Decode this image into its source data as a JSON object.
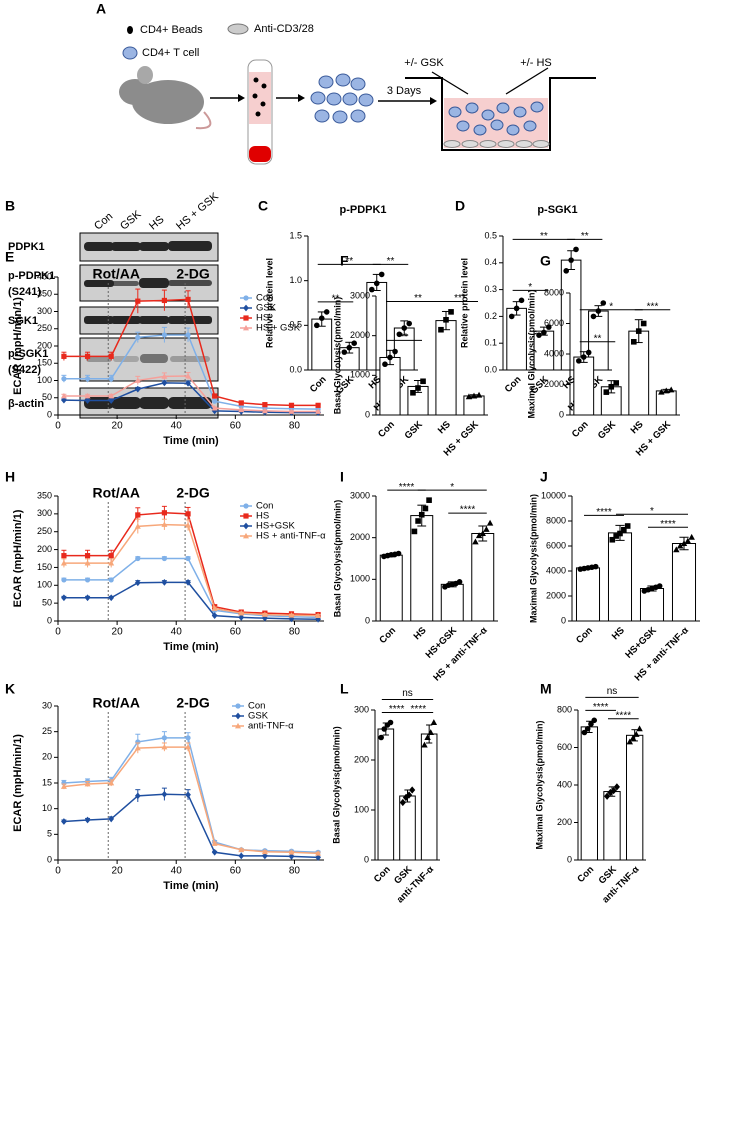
{
  "panel_a": {
    "panel": "A",
    "beads": "CD4+ Beads",
    "antibody": "Anti-CD3/28",
    "cell": "CD4+ T cell",
    "duration": "3 Days",
    "gsk": "+/- GSK",
    "hs": "+/- HS"
  },
  "blot": {
    "panel": "B",
    "lanes": [
      "Con",
      "GSK",
      "HS",
      "HS + GSK"
    ],
    "rows": [
      [
        "PDPK1"
      ],
      [
        "p-PDPK1",
        "(S241)"
      ],
      [
        "SGK1"
      ],
      [
        "p-SGK1",
        "(S422)"
      ],
      [
        "β-actin"
      ]
    ]
  },
  "chart_data": [
    {
      "type": "bar",
      "panel": "C",
      "title": "p-PDPK1",
      "ylabel": "Relative protein level",
      "categories": [
        "Con",
        "GSK",
        "HS",
        "HS + GSK"
      ],
      "values": [
        0.57,
        0.25,
        0.98,
        0.47
      ],
      "errors": [
        0.08,
        0.06,
        0.09,
        0.08
      ],
      "points": [
        [
          0.5,
          0.58,
          0.65
        ],
        [
          0.2,
          0.25,
          0.3
        ],
        [
          0.9,
          0.97,
          1.07
        ],
        [
          0.4,
          0.47,
          0.52
        ]
      ],
      "markers": [
        "circle",
        "circle",
        "circle",
        "circle"
      ],
      "ylim": [
        0,
        1.5
      ],
      "yticks": [
        {
          "value": 0,
          "label": "0.0"
        },
        0.5,
        {
          "value": 1,
          "label": "1.0"
        },
        1.5
      ],
      "significance": [
        {
          "from": 0,
          "to": 1,
          "label": "**"
        },
        {
          "from": 0,
          "to": 2,
          "label": "**"
        },
        {
          "from": 2,
          "to": 3,
          "label": "**"
        }
      ]
    },
    {
      "type": "bar",
      "panel": "D",
      "title": "p-SGK1",
      "ylabel": "Relative protein level",
      "categories": [
        "Con",
        "GSK",
        "HS",
        "HS + GSK"
      ],
      "values": [
        0.23,
        0.145,
        0.41,
        0.22
      ],
      "errors": [
        0.025,
        0.015,
        0.035,
        0.02
      ],
      "points": [
        [
          0.2,
          0.23,
          0.26
        ],
        [
          0.13,
          0.14,
          0.16
        ],
        [
          0.37,
          0.41,
          0.45
        ],
        [
          0.2,
          0.22,
          0.25
        ]
      ],
      "markers": [
        "circle",
        "circle",
        "circle",
        "circle"
      ],
      "ylim": [
        0,
        0.5
      ],
      "yticks": [
        {
          "value": 0,
          "label": "0.0"
        },
        0.1,
        0.2,
        0.3,
        0.4,
        0.5
      ],
      "significance": [
        {
          "from": 0,
          "to": 1,
          "label": "*"
        },
        {
          "from": 0,
          "to": 2,
          "label": "**"
        },
        {
          "from": 2,
          "to": 3,
          "label": "**"
        }
      ]
    },
    {
      "type": "line",
      "panel": "E",
      "ylabel": "ECAR (mpH/min/1)",
      "xlabel": "Time (min)",
      "x": [
        2,
        10,
        18,
        27,
        36,
        44,
        53,
        62,
        70,
        79,
        88
      ],
      "xlim": [
        0,
        90
      ],
      "xticks": [
        0,
        20,
        40,
        60,
        80
      ],
      "ylim": [
        0,
        400
      ],
      "yticks": [
        0,
        50,
        100,
        150,
        200,
        250,
        300,
        350,
        400
      ],
      "annotations": [
        {
          "text": "Rot/AA",
          "x": 17
        },
        {
          "text": "2-DG",
          "x": 43
        }
      ],
      "series": [
        {
          "name": "Con",
          "color": "#7fb0e8",
          "marker": "circle",
          "values": [
            105,
            105,
            105,
            225,
            232,
            232,
            40,
            25,
            20,
            18,
            17
          ],
          "errors": [
            10,
            10,
            10,
            15,
            22,
            20,
            5,
            3,
            3,
            2,
            2
          ]
        },
        {
          "name": "GSK",
          "color": "#1f4fa0",
          "marker": "diamond",
          "values": [
            43,
            42,
            42,
            75,
            93,
            92,
            12,
            10,
            8,
            7,
            7
          ],
          "errors": [
            3,
            3,
            3,
            5,
            6,
            6,
            2,
            1,
            1,
            1,
            1
          ]
        },
        {
          "name": "HS",
          "color": "#e8291c",
          "marker": "square",
          "values": [
            170,
            170,
            170,
            330,
            332,
            335,
            55,
            35,
            30,
            28,
            28
          ],
          "errors": [
            12,
            12,
            12,
            35,
            30,
            25,
            6,
            4,
            3,
            3,
            3
          ]
        },
        {
          "name": "HS + GSK",
          "color": "#f5a09a",
          "marker": "triangle",
          "values": [
            55,
            55,
            55,
            100,
            112,
            113,
            20,
            15,
            12,
            10,
            10
          ],
          "errors": [
            5,
            5,
            5,
            12,
            10,
            10,
            3,
            2,
            2,
            2,
            2
          ]
        }
      ]
    },
    {
      "type": "bar",
      "panel": "F",
      "ylabel": "Basal Glycolysis(pmol/min)",
      "categories": [
        "Con",
        "GSK",
        "HS",
        "HS + GSK"
      ],
      "values": [
        1450,
        720,
        2380,
        480
      ],
      "errors": [
        180,
        150,
        230,
        30
      ],
      "points": [
        [
          1280,
          1450,
          1600
        ],
        [
          560,
          680,
          850
        ],
        [
          2150,
          2400,
          2600
        ],
        [
          460,
          480,
          500
        ]
      ],
      "markers": [
        "circle",
        "square",
        "square",
        "triangle"
      ],
      "ylim": [
        0,
        3000
      ],
      "yticks": [
        0,
        1000,
        2000,
        3000
      ],
      "significance": [
        {
          "from": 0,
          "to": 1,
          "label": "**"
        },
        {
          "from": 0,
          "to": 2,
          "label": "**"
        },
        {
          "from": 2,
          "to": 3,
          "label": "***"
        }
      ]
    },
    {
      "type": "bar",
      "panel": "G",
      "ylabel": "Maximal Glycolysis(pmol/min)",
      "categories": [
        "Con",
        "GSK",
        "HS",
        "HS + GSK"
      ],
      "values": [
        3800,
        1850,
        5500,
        1580
      ],
      "errors": [
        350,
        400,
        750,
        100
      ],
      "points": [
        [
          3550,
          3800,
          4100
        ],
        [
          1500,
          1850,
          2100
        ],
        [
          4800,
          5500,
          6000
        ],
        [
          1500,
          1580,
          1650
        ]
      ],
      "markers": [
        "circle",
        "square",
        "square",
        "triangle"
      ],
      "ylim": [
        0,
        8000
      ],
      "yticks": [
        0,
        2000,
        4000,
        6000,
        8000
      ],
      "significance": [
        {
          "from": 0,
          "to": 1,
          "label": "**"
        },
        {
          "from": 0,
          "to": 2,
          "label": "*"
        },
        {
          "from": 2,
          "to": 3,
          "label": "***"
        }
      ]
    },
    {
      "type": "line",
      "panel": "H",
      "ylabel": "ECAR (mpH/min/1)",
      "xlabel": "Time (min)",
      "x": [
        2,
        10,
        18,
        27,
        36,
        44,
        53,
        62,
        70,
        79,
        88
      ],
      "xlim": [
        0,
        90
      ],
      "xticks": [
        0,
        20,
        40,
        60,
        80
      ],
      "ylim": [
        0,
        350
      ],
      "yticks": [
        0,
        50,
        100,
        150,
        200,
        250,
        300,
        350
      ],
      "annotations": [
        {
          "text": "Rot/AA",
          "x": 17
        },
        {
          "text": "2-DG",
          "x": 43
        }
      ],
      "series": [
        {
          "name": "Con",
          "color": "#7fb0e8",
          "marker": "circle",
          "values": [
            115,
            115,
            115,
            175,
            175,
            175,
            30,
            20,
            15,
            12,
            10
          ],
          "errors": [
            5,
            5,
            5,
            5,
            5,
            5,
            3,
            2,
            2,
            2,
            2
          ]
        },
        {
          "name": "HS",
          "color": "#e8291c",
          "marker": "square",
          "values": [
            183,
            183,
            183,
            297,
            303,
            300,
            40,
            25,
            22,
            20,
            18
          ],
          "errors": [
            15,
            15,
            15,
            20,
            18,
            18,
            5,
            3,
            3,
            3,
            3
          ]
        },
        {
          "name": "HS+GSK",
          "color": "#1f4fa0",
          "marker": "diamond",
          "values": [
            65,
            65,
            65,
            107,
            108,
            108,
            15,
            10,
            8,
            6,
            5
          ],
          "errors": [
            4,
            4,
            4,
            6,
            5,
            5,
            2,
            1,
            1,
            1,
            1
          ]
        },
        {
          "name": "HS + anti-TNF-α",
          "color": "#f7a77a",
          "marker": "triangle",
          "values": [
            162,
            162,
            162,
            265,
            270,
            268,
            35,
            22,
            18,
            16,
            15
          ],
          "errors": [
            12,
            12,
            12,
            20,
            15,
            15,
            4,
            3,
            3,
            3,
            3
          ]
        }
      ]
    },
    {
      "type": "bar",
      "panel": "I",
      "ylabel": "Basal Glycolysis(pmol/min)",
      "categories": [
        "Con",
        "HS",
        "HS+GSK",
        "HS + anti-TNF-α"
      ],
      "values": [
        1580,
        2530,
        880,
        2100
      ],
      "errors": [
        40,
        250,
        60,
        180
      ],
      "points": [
        [
          1550,
          1570,
          1590,
          1600,
          1620
        ],
        [
          2150,
          2400,
          2550,
          2700,
          2900
        ],
        [
          820,
          860,
          880,
          900,
          940
        ],
        [
          1900,
          2050,
          2100,
          2200,
          2350
        ]
      ],
      "markers": [
        "circle",
        "square",
        "circle",
        "triangle"
      ],
      "ylim": [
        0,
        3000
      ],
      "yticks": [
        0,
        1000,
        2000,
        3000
      ],
      "significance": [
        {
          "from": 0,
          "to": 1,
          "label": "****"
        },
        {
          "from": 2,
          "to": 3,
          "label": "****"
        },
        {
          "from": 1,
          "to": 3,
          "label": "*"
        }
      ]
    },
    {
      "type": "bar",
      "panel": "J",
      "ylabel": "Maximal Glycolysis(pmol/min)",
      "categories": [
        "Con",
        "HS",
        "HS+GSK",
        "HS + anti-TNF-α"
      ],
      "values": [
        4250,
        7050,
        2600,
        6200
      ],
      "errors": [
        100,
        600,
        200,
        500
      ],
      "points": [
        [
          4150,
          4200,
          4250,
          4300,
          4350
        ],
        [
          6500,
          6800,
          7000,
          7300,
          7600
        ],
        [
          2400,
          2500,
          2600,
          2700,
          2800
        ],
        [
          5700,
          6000,
          6200,
          6400,
          6700
        ]
      ],
      "markers": [
        "circle",
        "square",
        "circle",
        "triangle"
      ],
      "ylim": [
        0,
        10000
      ],
      "yticks": [
        0,
        2000,
        4000,
        6000,
        8000,
        10000
      ],
      "significance": [
        {
          "from": 0,
          "to": 1,
          "label": "****"
        },
        {
          "from": 2,
          "to": 3,
          "label": "****"
        },
        {
          "from": 1,
          "to": 3,
          "label": "*"
        }
      ]
    },
    {
      "type": "line",
      "panel": "K",
      "ylabel": "ECAR (mpH/min/1)",
      "xlabel": "Time (min)",
      "x": [
        2,
        10,
        18,
        27,
        36,
        44,
        53,
        62,
        70,
        79,
        88
      ],
      "xlim": [
        0,
        90
      ],
      "xticks": [
        0,
        20,
        40,
        60,
        80
      ],
      "ylim": [
        0,
        30
      ],
      "yticks": [
        0,
        5,
        10,
        15,
        20,
        25,
        30
      ],
      "annotations": [
        {
          "text": "Rot/AA",
          "x": 17
        },
        {
          "text": "2-DG",
          "x": 43
        }
      ],
      "series": [
        {
          "name": "Con",
          "color": "#7fb0e8",
          "marker": "circle",
          "values": [
            15,
            15.3,
            15.5,
            23,
            23.8,
            23.8,
            3.5,
            2,
            1.8,
            1.7,
            1.5
          ],
          "errors": [
            0.5,
            0.5,
            0.6,
            1.5,
            1.2,
            1,
            0.3,
            0.2,
            0.2,
            0.2,
            0.2
          ]
        },
        {
          "name": "GSK",
          "color": "#1f4fa0",
          "marker": "diamond",
          "values": [
            7.5,
            7.8,
            8,
            12.5,
            12.8,
            12.7,
            1.5,
            0.8,
            0.8,
            0.7,
            0.5
          ],
          "errors": [
            0.3,
            0.3,
            0.4,
            1.2,
            1.2,
            1,
            0.2,
            0.1,
            0.1,
            0.1,
            0.1
          ]
        },
        {
          "name": "anti-TNF-α",
          "color": "#f7a77a",
          "marker": "triangle",
          "values": [
            14.3,
            14.8,
            15,
            21.8,
            22,
            22,
            3.2,
            2,
            1.6,
            1.5,
            1.3
          ],
          "errors": [
            0.5,
            0.5,
            0.6,
            1,
            0.8,
            0.8,
            0.3,
            0.2,
            0.2,
            0.2,
            0.2
          ]
        }
      ]
    },
    {
      "type": "bar",
      "panel": "L",
      "ylabel": "Basal Glycolysis(pmol/min)",
      "categories": [
        "Con",
        "GSK",
        "anti-TNF-α"
      ],
      "values": [
        262,
        128,
        252
      ],
      "errors": [
        12,
        12,
        18
      ],
      "points": [
        [
          245,
          262,
          270,
          275
        ],
        [
          115,
          125,
          130,
          140
        ],
        [
          230,
          245,
          255,
          275
        ]
      ],
      "markers": [
        "circle",
        "diamond",
        "triangle"
      ],
      "ylim": [
        0,
        300
      ],
      "yticks": [
        0,
        100,
        200,
        300
      ],
      "significance": [
        {
          "from": 0,
          "to": 1,
          "label": "****"
        },
        {
          "from": 1,
          "to": 2,
          "label": "****"
        },
        {
          "from": 0,
          "to": 2,
          "label": "ns"
        }
      ]
    },
    {
      "type": "bar",
      "panel": "M",
      "ylabel": "Maximal Glycolysis(pmol/min)",
      "categories": [
        "Con",
        "GSK",
        "anti-TNF-α"
      ],
      "values": [
        710,
        365,
        665
      ],
      "errors": [
        30,
        25,
        30
      ],
      "points": [
        [
          680,
          700,
          725,
          745
        ],
        [
          340,
          360,
          370,
          390
        ],
        [
          630,
          650,
          670,
          700
        ]
      ],
      "markers": [
        "circle",
        "diamond",
        "triangle"
      ],
      "ylim": [
        0,
        800
      ],
      "yticks": [
        0,
        200,
        400,
        600,
        800
      ],
      "significance": [
        {
          "from": 0,
          "to": 1,
          "label": "****"
        },
        {
          "from": 1,
          "to": 2,
          "label": "****"
        },
        {
          "from": 0,
          "to": 2,
          "label": "ns"
        }
      ]
    }
  ]
}
